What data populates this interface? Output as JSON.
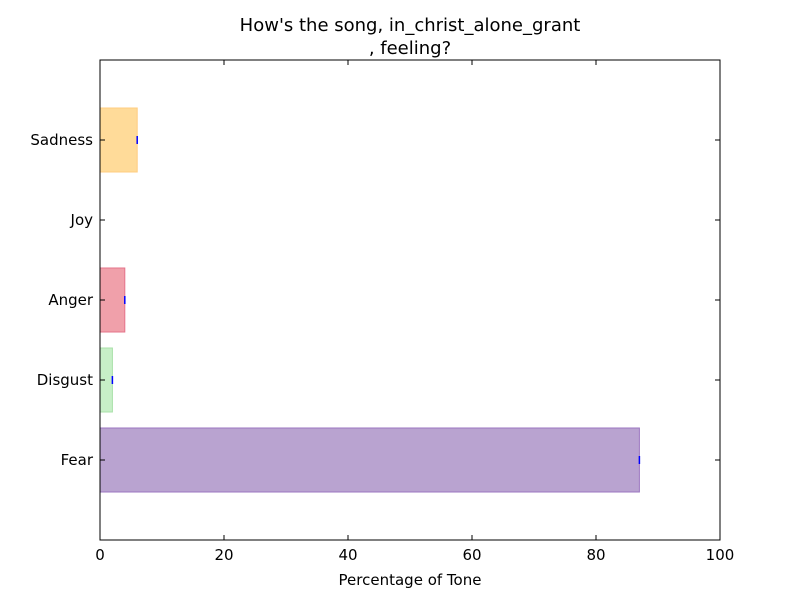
{
  "chart_data": {
    "type": "bar",
    "orientation": "horizontal",
    "title_lines": [
      "How's the song, in_christ_alone_grant",
      ", feeling?"
    ],
    "xlabel": "Percentage of Tone",
    "ylabel": "",
    "xlim": [
      0,
      100
    ],
    "xticks": [
      "0",
      "20",
      "40",
      "60",
      "80",
      "100"
    ],
    "grid": false,
    "categories": [
      "Fear",
      "Disgust",
      "Anger",
      "Joy",
      "Sadness"
    ],
    "values": [
      87,
      2,
      4,
      0,
      6
    ],
    "colors": [
      "#b9a3d0",
      "#c7efc7",
      "#f0a0aa",
      "#ffe0a8",
      "#ffdb99"
    ],
    "edge_colors": [
      "#9b76c0",
      "#a8e0a8",
      "#e4738a",
      "#ffcc80",
      "#ffcc80"
    ],
    "error_bar_color": "#0000ff"
  }
}
